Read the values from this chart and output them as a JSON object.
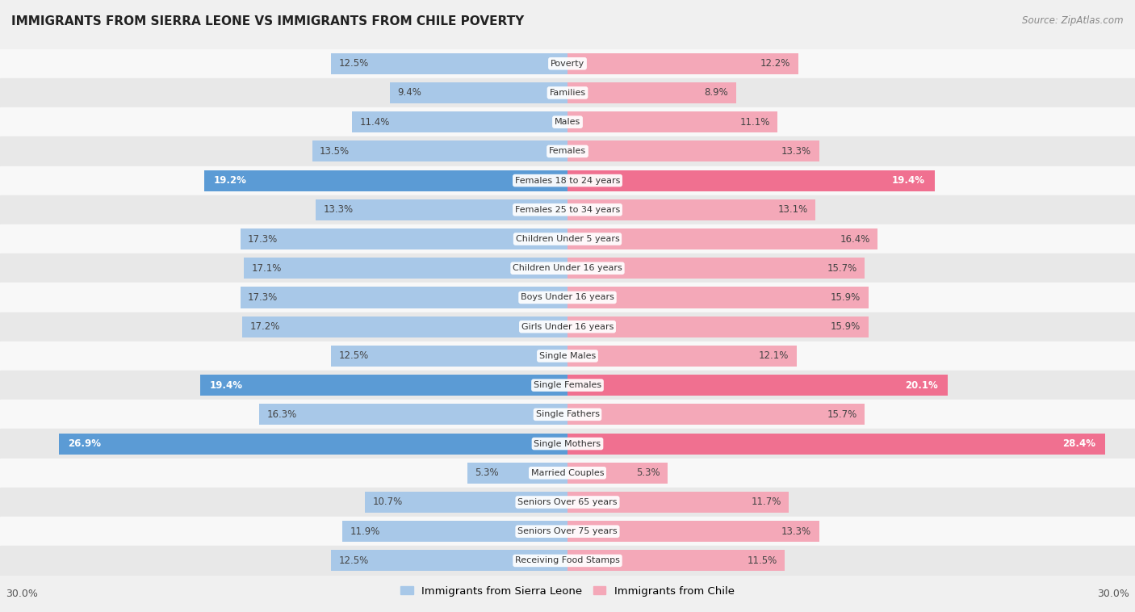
{
  "title": "IMMIGRANTS FROM SIERRA LEONE VS IMMIGRANTS FROM CHILE POVERTY",
  "source": "Source: ZipAtlas.com",
  "categories": [
    "Poverty",
    "Families",
    "Males",
    "Females",
    "Females 18 to 24 years",
    "Females 25 to 34 years",
    "Children Under 5 years",
    "Children Under 16 years",
    "Boys Under 16 years",
    "Girls Under 16 years",
    "Single Males",
    "Single Females",
    "Single Fathers",
    "Single Mothers",
    "Married Couples",
    "Seniors Over 65 years",
    "Seniors Over 75 years",
    "Receiving Food Stamps"
  ],
  "sierra_leone": [
    12.5,
    9.4,
    11.4,
    13.5,
    19.2,
    13.3,
    17.3,
    17.1,
    17.3,
    17.2,
    12.5,
    19.4,
    16.3,
    26.9,
    5.3,
    10.7,
    11.9,
    12.5
  ],
  "chile": [
    12.2,
    8.9,
    11.1,
    13.3,
    19.4,
    13.1,
    16.4,
    15.7,
    15.9,
    15.9,
    12.1,
    20.1,
    15.7,
    28.4,
    5.3,
    11.7,
    13.3,
    11.5
  ],
  "sierra_leone_color": "#a8c8e8",
  "chile_color": "#f4a8b8",
  "sierra_leone_highlight_color": "#5b9bd5",
  "chile_highlight_color": "#f07090",
  "highlight_rows": [
    4,
    11,
    13
  ],
  "background_color": "#f0f0f0",
  "row_bg_odd": "#f8f8f8",
  "row_bg_even": "#e8e8e8",
  "xlim": 30.0,
  "legend_label_sierra": "Immigrants from Sierra Leone",
  "legend_label_chile": "Immigrants from Chile",
  "bar_height": 0.72
}
